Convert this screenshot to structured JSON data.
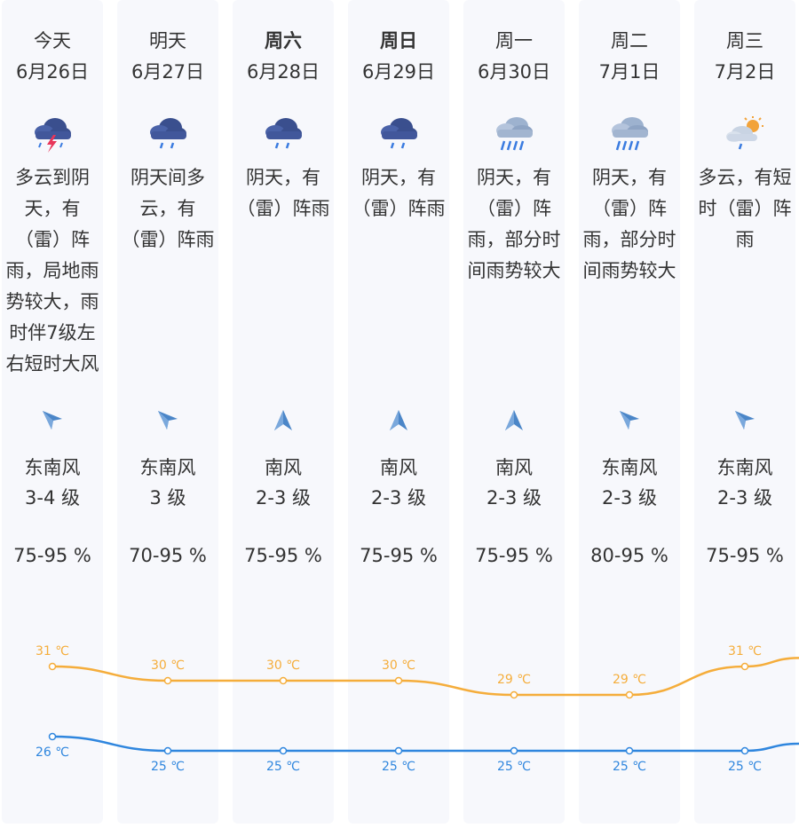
{
  "forecast": {
    "days": [
      {
        "name": "今天",
        "date": "6月26日",
        "bold": false,
        "icon": "thunderstorm-icon",
        "description": "多云到阴天，有（雷）阵雨，局地雨势较大，雨时伴7级左右短时大风",
        "wind_dir": "东南风",
        "wind_level": "3-4 级",
        "wind_arrow": "arrow-southeast-icon",
        "humidity": "75-95 %",
        "high": "31 ℃",
        "low": "26 ℃"
      },
      {
        "name": "明天",
        "date": "6月27日",
        "bold": false,
        "icon": "rain-cloud-icon",
        "description": "阴天间多云，有（雷）阵雨",
        "wind_dir": "东南风",
        "wind_level": "3 级",
        "wind_arrow": "arrow-southeast-icon",
        "humidity": "70-95 %",
        "high": "30 ℃",
        "low": "25 ℃"
      },
      {
        "name": "周六",
        "date": "6月28日",
        "bold": true,
        "icon": "rain-cloud-icon",
        "description": "阴天，有（雷）阵雨",
        "wind_dir": "南风",
        "wind_level": "2-3 级",
        "wind_arrow": "arrow-south-icon",
        "humidity": "75-95 %",
        "high": "30 ℃",
        "low": "25 ℃"
      },
      {
        "name": "周日",
        "date": "6月29日",
        "bold": true,
        "icon": "rain-cloud-icon",
        "description": "阴天，有（雷）阵雨",
        "wind_dir": "南风",
        "wind_level": "2-3 级",
        "wind_arrow": "arrow-south-icon",
        "humidity": "75-95 %",
        "high": "30 ℃",
        "low": "25 ℃"
      },
      {
        "name": "周一",
        "date": "6月30日",
        "bold": false,
        "icon": "heavy-rain-icon",
        "description": "阴天，有（雷）阵雨，部分时间雨势较大",
        "wind_dir": "南风",
        "wind_level": "2-3 级",
        "wind_arrow": "arrow-south-icon",
        "humidity": "75-95 %",
        "high": "29 ℃",
        "low": "25 ℃"
      },
      {
        "name": "周二",
        "date": "7月1日",
        "bold": false,
        "icon": "heavy-rain-icon",
        "description": "阴天，有（雷）阵雨，部分时间雨势较大",
        "wind_dir": "东南风",
        "wind_level": "2-3 级",
        "wind_arrow": "arrow-southeast-icon",
        "humidity": "80-95 %",
        "high": "29 ℃",
        "low": "25 ℃"
      },
      {
        "name": "周三",
        "date": "7月2日",
        "bold": false,
        "icon": "partly-cloudy-shower-icon",
        "description": "多云，有短时（雷）阵雨",
        "wind_dir": "东南风",
        "wind_level": "2-3 级",
        "wind_arrow": "arrow-southeast-icon",
        "humidity": "75-95 %",
        "high": "31 ℃",
        "low": "25 ℃"
      }
    ]
  },
  "chart_data": {
    "type": "line",
    "categories": [
      "今天",
      "明天",
      "周六",
      "周日",
      "周一",
      "周二",
      "周三"
    ],
    "series": [
      {
        "name": "high",
        "color": "#f5ad3b",
        "values": [
          31,
          30,
          30,
          30,
          29,
          29,
          31
        ]
      },
      {
        "name": "low",
        "color": "#2f86de",
        "values": [
          26,
          25,
          25,
          25,
          25,
          25,
          25
        ]
      }
    ],
    "unit": "℃"
  }
}
